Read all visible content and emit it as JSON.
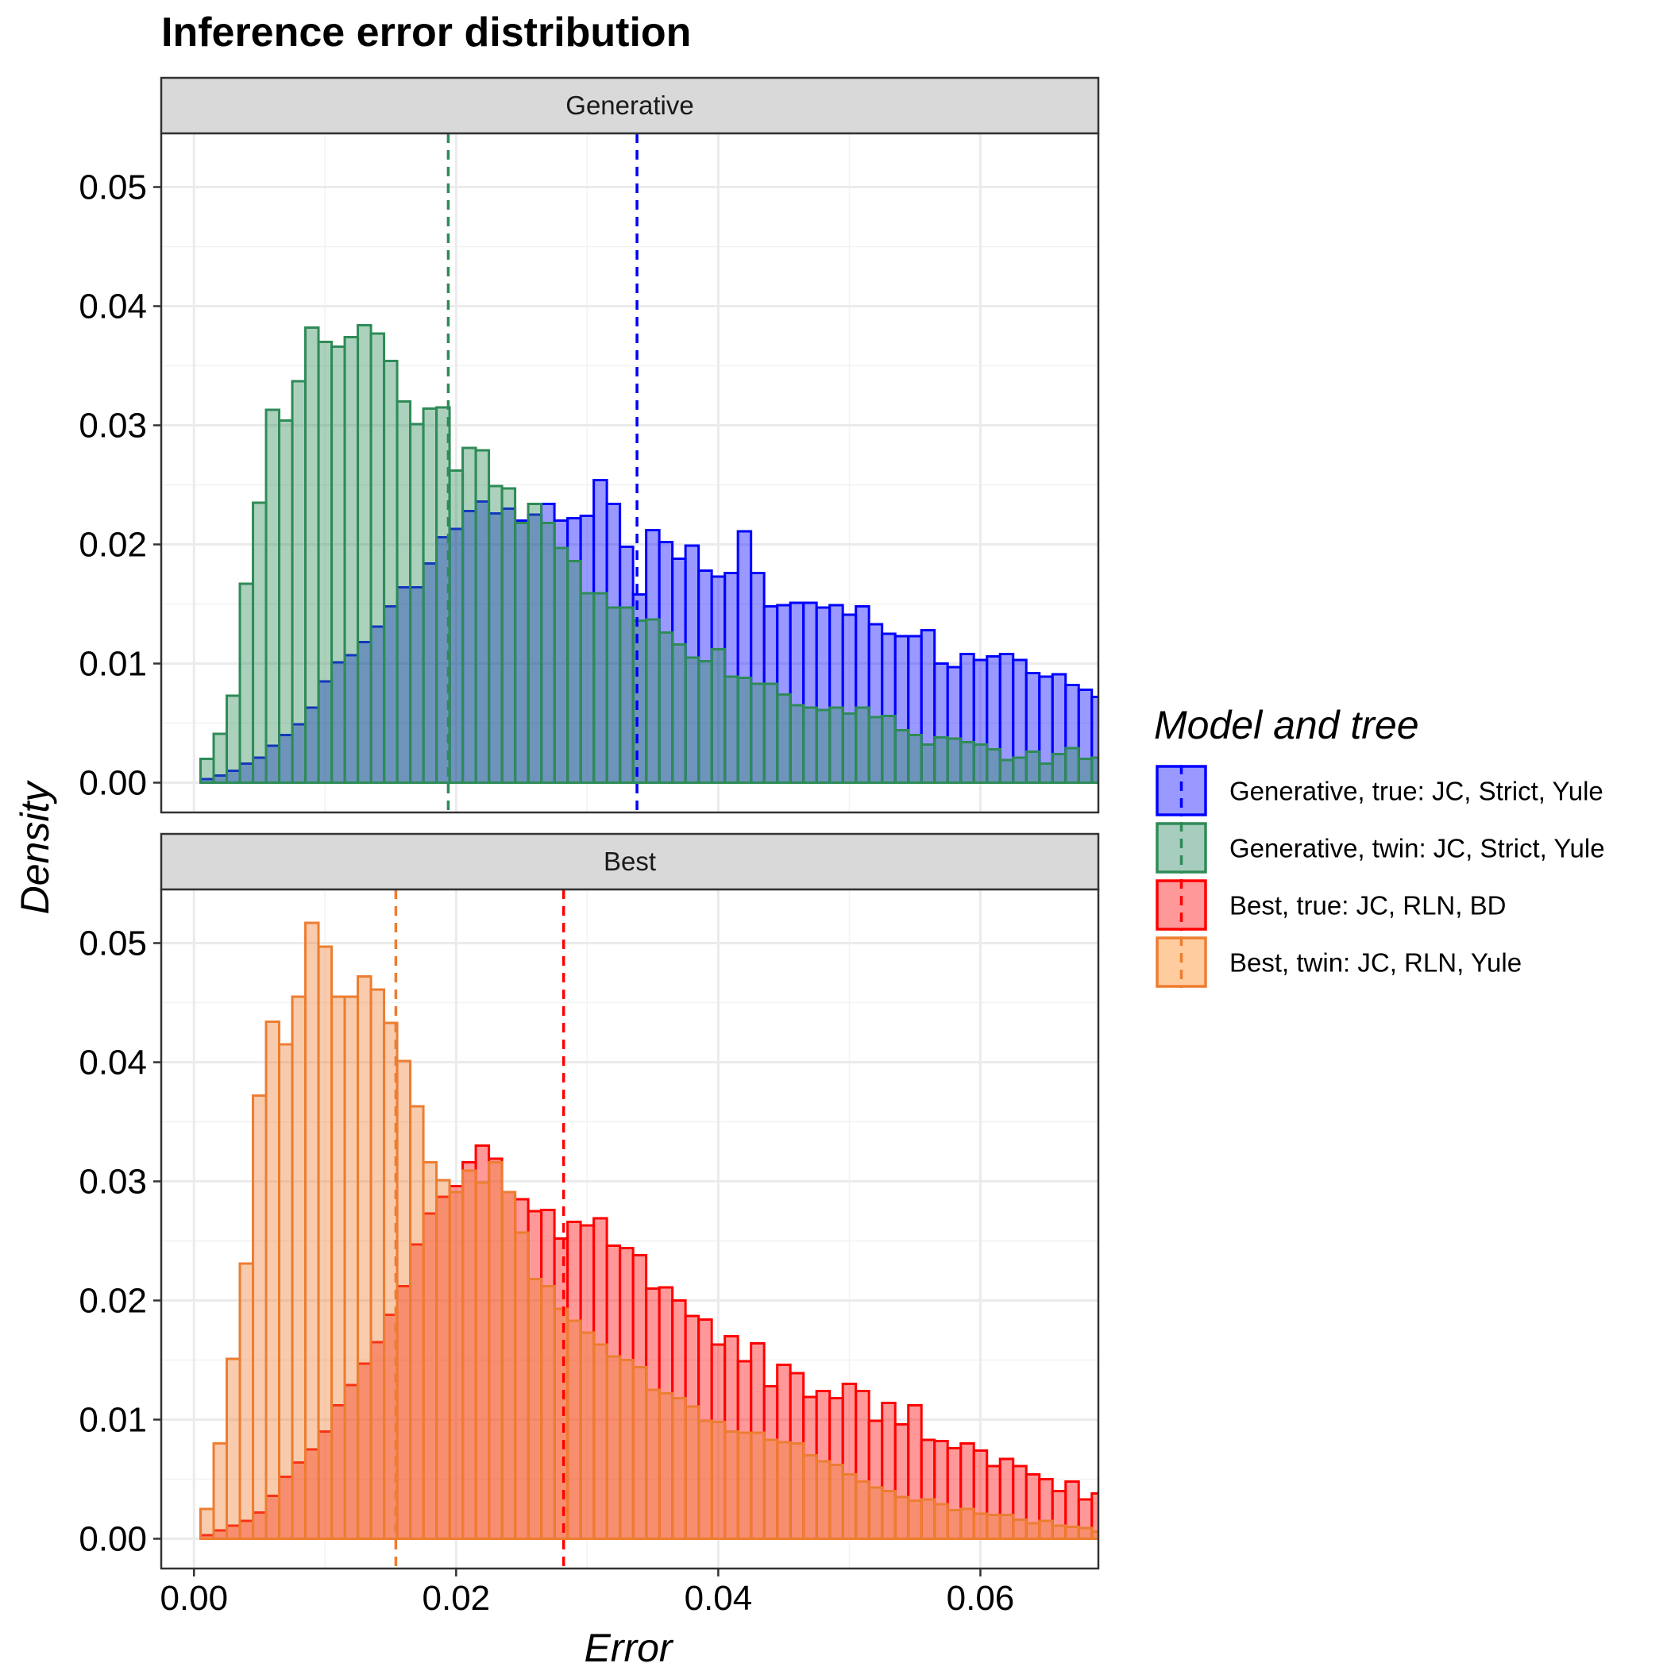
{
  "chart_data": {
    "type": "bar",
    "subtype": "histogram",
    "title": "Inference error distribution",
    "xlabel": "Error",
    "ylabel": "Density",
    "xlim": [
      -0.0025,
      0.069
    ],
    "ylim": [
      -0.0025,
      0.0545
    ],
    "x_ticks": [
      0.0,
      0.02,
      0.04,
      0.06
    ],
    "x_tick_labels": [
      "0.00",
      "0.02",
      "0.04",
      "0.06"
    ],
    "y_ticks": [
      0.0,
      0.01,
      0.02,
      0.03,
      0.04,
      0.05
    ],
    "y_tick_labels": [
      "0.00",
      "0.01",
      "0.02",
      "0.03",
      "0.04",
      "0.05"
    ],
    "grid": true,
    "bin_start": 0.0005,
    "bin_width": 0.001,
    "legend": {
      "title": "Model and tree",
      "position": "right",
      "entries": [
        {
          "label": "Generative, true: JC, Strict, Yule",
          "fill": "#9999ff",
          "stroke": "#0000ff"
        },
        {
          "label": "Generative, twin: JC, Strict, Yule",
          "fill": "#a7cdbe",
          "stroke": "#2e8b57"
        },
        {
          "label": "Best, true: JC, RLN, BD",
          "fill": "#ff9999",
          "stroke": "#ff0000"
        },
        {
          "label": "Best, twin: JC, RLN, Yule",
          "fill": "#ffcc9f",
          "stroke": "#ed7d31"
        }
      ]
    },
    "panels": [
      {
        "strip": "Generative",
        "series": [
          {
            "name": "Generative, true: JC, Strict, Yule",
            "fill": "#0000ff",
            "fill_opacity": 0.4,
            "stroke": "#0000ff",
            "mean_line": 0.0338,
            "values": [
              0.0003,
              0.0006,
              0.001,
              0.0016,
              0.0021,
              0.0031,
              0.004,
              0.0049,
              0.0063,
              0.0085,
              0.0101,
              0.0107,
              0.0118,
              0.0131,
              0.0148,
              0.0164,
              0.0164,
              0.0184,
              0.0206,
              0.0213,
              0.0228,
              0.0236,
              0.0226,
              0.023,
              0.022,
              0.0225,
              0.0234,
              0.022,
              0.0222,
              0.0224,
              0.0254,
              0.0234,
              0.0198,
              0.0158,
              0.0212,
              0.0202,
              0.0188,
              0.0199,
              0.0178,
              0.0173,
              0.0176,
              0.0211,
              0.0176,
              0.0148,
              0.0149,
              0.0151,
              0.0151,
              0.0147,
              0.0149,
              0.0141,
              0.0148,
              0.0133,
              0.0125,
              0.0123,
              0.0123,
              0.0128,
              0.01,
              0.0097,
              0.0108,
              0.0103,
              0.0106,
              0.0108,
              0.0103,
              0.0092,
              0.0089,
              0.0091,
              0.0082,
              0.0078,
              0.0072,
              0.0067,
              0.0062,
              0.0085,
              0.0059
            ]
          },
          {
            "name": "Generative, twin: JC, Strict, Yule",
            "fill": "#2e8b57",
            "fill_opacity": 0.4,
            "stroke": "#2e8b57",
            "mean_line": 0.0194,
            "values": [
              0.002,
              0.0041,
              0.0073,
              0.0167,
              0.0235,
              0.0313,
              0.0304,
              0.0337,
              0.0382,
              0.037,
              0.0366,
              0.0374,
              0.0384,
              0.0377,
              0.0354,
              0.032,
              0.0301,
              0.0314,
              0.0315,
              0.0262,
              0.0281,
              0.0279,
              0.0249,
              0.0247,
              0.0218,
              0.0234,
              0.0218,
              0.0197,
              0.0186,
              0.0159,
              0.0159,
              0.0147,
              0.0147,
              0.0136,
              0.0137,
              0.0126,
              0.0116,
              0.0105,
              0.0102,
              0.0112,
              0.0089,
              0.0088,
              0.0083,
              0.0083,
              0.0074,
              0.0065,
              0.0063,
              0.0061,
              0.0063,
              0.0058,
              0.0063,
              0.0055,
              0.0056,
              0.0044,
              0.004,
              0.0032,
              0.0038,
              0.0037,
              0.0034,
              0.0032,
              0.0028,
              0.0019,
              0.0021,
              0.0026,
              0.0016,
              0.0024,
              0.0029,
              0.002,
              0.0021,
              0.0011,
              0.0015,
              0.0016,
              0.0014
            ]
          }
        ]
      },
      {
        "strip": "Best",
        "series": [
          {
            "name": "Best, true: JC, RLN, BD",
            "fill": "#ff0000",
            "fill_opacity": 0.4,
            "stroke": "#ff0000",
            "mean_line": 0.0282,
            "values": [
              0.0003,
              0.0007,
              0.0011,
              0.0015,
              0.0022,
              0.0036,
              0.0052,
              0.0064,
              0.0075,
              0.009,
              0.0112,
              0.0129,
              0.0147,
              0.0165,
              0.0188,
              0.0212,
              0.0247,
              0.0273,
              0.0287,
              0.0296,
              0.0316,
              0.033,
              0.0319,
              0.0291,
              0.0285,
              0.0275,
              0.0276,
              0.0252,
              0.0266,
              0.0263,
              0.0269,
              0.0246,
              0.0244,
              0.0238,
              0.021,
              0.0211,
              0.02,
              0.0187,
              0.0184,
              0.0163,
              0.017,
              0.0149,
              0.0164,
              0.0128,
              0.0146,
              0.0139,
              0.0119,
              0.0124,
              0.0118,
              0.013,
              0.0124,
              0.0099,
              0.0114,
              0.0096,
              0.0112,
              0.0083,
              0.0082,
              0.0076,
              0.008,
              0.0074,
              0.0061,
              0.0067,
              0.0061,
              0.0054,
              0.005,
              0.004,
              0.0048,
              0.0033,
              0.0038,
              0.0039,
              0.0033,
              0.0025,
              0.0032
            ]
          },
          {
            "name": "Best, twin: JC, RLN, Yule",
            "fill": "#ed7d31",
            "fill_opacity": 0.4,
            "stroke": "#ed7d31",
            "mean_line": 0.0154,
            "values": [
              0.0025,
              0.008,
              0.0151,
              0.0231,
              0.0372,
              0.0434,
              0.0415,
              0.0455,
              0.0517,
              0.0497,
              0.0455,
              0.0455,
              0.0472,
              0.0461,
              0.0433,
              0.0401,
              0.0363,
              0.0316,
              0.0301,
              0.0291,
              0.0309,
              0.0299,
              0.0316,
              0.0291,
              0.0257,
              0.0218,
              0.0212,
              0.0193,
              0.0183,
              0.0173,
              0.0163,
              0.0153,
              0.015,
              0.0144,
              0.0125,
              0.0122,
              0.0118,
              0.0111,
              0.0099,
              0.0098,
              0.009,
              0.0089,
              0.0089,
              0.0083,
              0.0081,
              0.008,
              0.007,
              0.0065,
              0.0062,
              0.0054,
              0.0048,
              0.0043,
              0.004,
              0.0035,
              0.0032,
              0.0033,
              0.0029,
              0.0024,
              0.0025,
              0.0021,
              0.002,
              0.002,
              0.0016,
              0.0013,
              0.0015,
              0.0011,
              0.001,
              0.0009,
              0.0006,
              0.0005,
              0.0004,
              0.0004,
              0.0003
            ]
          }
        ]
      }
    ]
  }
}
